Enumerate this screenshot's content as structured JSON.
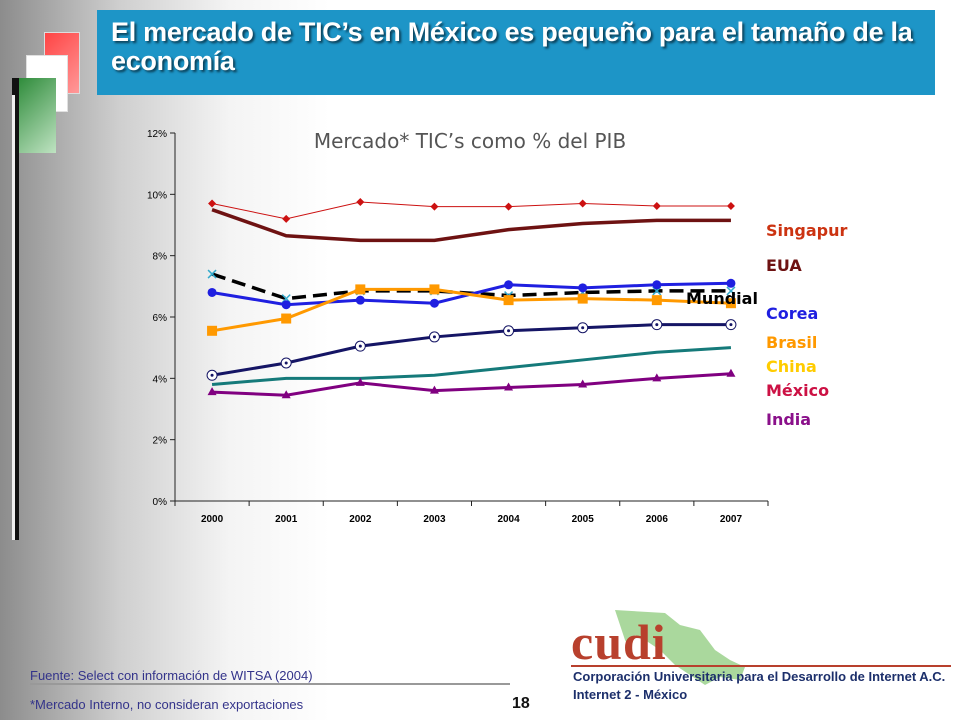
{
  "header": {
    "title": "El mercado de TIC’s en México es pequeño para el tamaño de la economía"
  },
  "chart_data": {
    "type": "line",
    "title": "Mercado* TIC’s como % del PIB",
    "xlabel": "",
    "ylabel": "",
    "categories": [
      "2000",
      "2001",
      "2002",
      "2003",
      "2004",
      "2005",
      "2006",
      "2007"
    ],
    "ylim": [
      0,
      12
    ],
    "yticks": [
      "0%",
      "2%",
      "4%",
      "6%",
      "8%",
      "10%",
      "12%"
    ],
    "grid": false,
    "series": [
      {
        "name": "Singapur",
        "color": "#cc1111",
        "marker": "diamond",
        "values": [
          9.7,
          9.2,
          9.75,
          9.6,
          9.6,
          9.7,
          9.62,
          9.62
        ]
      },
      {
        "name": "EUA",
        "color": "#6e1212",
        "marker": "none",
        "values": [
          9.5,
          8.65,
          8.5,
          8.5,
          8.85,
          9.05,
          9.15,
          9.15
        ]
      },
      {
        "name": "Mundial",
        "color": "#000000",
        "marker": "x",
        "dashed": true,
        "values": [
          7.4,
          6.6,
          6.85,
          6.85,
          6.7,
          6.8,
          6.85,
          6.85
        ]
      },
      {
        "name": "Corea",
        "color": "#1f1fe0",
        "marker": "circle-filled",
        "values": [
          6.8,
          6.4,
          6.55,
          6.45,
          7.05,
          6.95,
          7.05,
          7.1
        ]
      },
      {
        "name": "Brasil",
        "color": "#ff9900",
        "marker": "square",
        "values": [
          5.55,
          5.95,
          6.9,
          6.9,
          6.55,
          6.6,
          6.55,
          6.45
        ]
      },
      {
        "name": "China",
        "color": "#151565",
        "marker": "circle-open",
        "values": [
          4.1,
          4.5,
          5.05,
          5.35,
          5.55,
          5.65,
          5.75,
          5.75
        ]
      },
      {
        "name": "México",
        "color": "#157a7a",
        "marker": "none",
        "values": [
          3.8,
          4.0,
          4.0,
          4.1,
          4.35,
          4.6,
          4.85,
          5.0
        ]
      },
      {
        "name": "India",
        "color": "#800080",
        "marker": "triangle",
        "values": [
          3.55,
          3.45,
          3.85,
          3.6,
          3.7,
          3.8,
          4.0,
          4.15
        ]
      }
    ],
    "labels": [
      {
        "text": "Singapur",
        "color": "#cc3311"
      },
      {
        "text": "EUA",
        "color": "#6e1212"
      },
      {
        "text": "Mundial",
        "color": "#000000"
      },
      {
        "text": "Corea",
        "color": "#1f1fe0"
      },
      {
        "text": "Brasil",
        "color": "#ff9900"
      },
      {
        "text": "China",
        "color": "#ffcc00"
      },
      {
        "text": "México",
        "color": "#cc1144"
      },
      {
        "text": "India",
        "color": "#8a108a"
      }
    ]
  },
  "footer": {
    "source": "Fuente: Select con información de WITSA (2004)",
    "note": "*Mercado Interno, no consideran exportaciones",
    "page_number": "18"
  },
  "logo": {
    "word": "cudi",
    "line1": "Corporación Universitaria para el Desarrollo de Internet A.C.",
    "line2": "Internet 2 - México"
  }
}
